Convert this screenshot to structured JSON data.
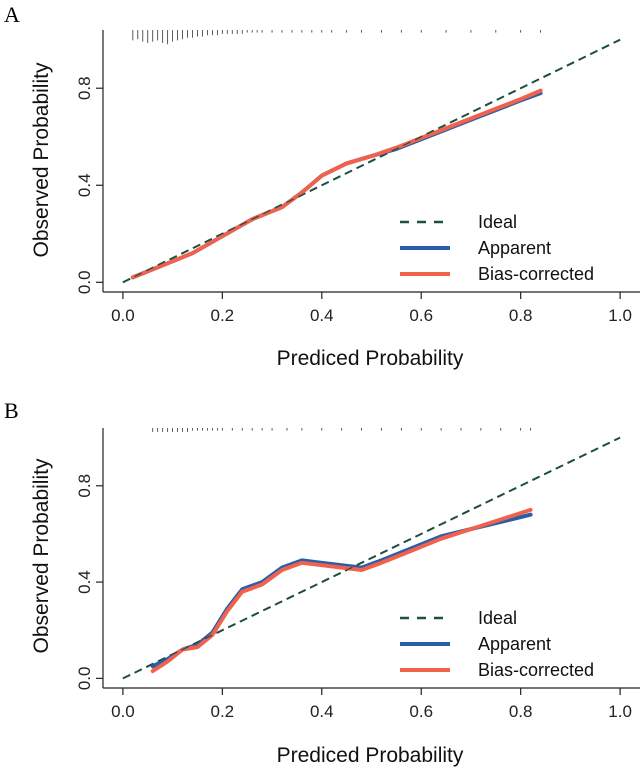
{
  "chart_data": [
    {
      "panel": "A",
      "type": "line",
      "xlabel": "Prediced Probability",
      "ylabel": "Observed Probability",
      "xlim": [
        0.0,
        1.0
      ],
      "ylim": [
        0.0,
        1.0
      ],
      "xticks": [
        "0.0",
        "0.2",
        "0.4",
        "0.6",
        "0.8",
        "1.0"
      ],
      "yticks": [
        "0.0",
        "0.4",
        "0.8"
      ],
      "legend_position": "bottom-right",
      "series": [
        {
          "name": "Ideal",
          "style": "dashed",
          "color": "#1f4f3f",
          "x": [
            0.0,
            1.0
          ],
          "y": [
            0.0,
            1.0
          ]
        },
        {
          "name": "Apparent",
          "style": "solid",
          "color": "#2a5fa8",
          "x": [
            0.02,
            0.08,
            0.14,
            0.2,
            0.26,
            0.32,
            0.36,
            0.4,
            0.45,
            0.5,
            0.55,
            0.6,
            0.65,
            0.7,
            0.75,
            0.8,
            0.84
          ],
          "y": [
            0.02,
            0.07,
            0.12,
            0.19,
            0.26,
            0.31,
            0.37,
            0.44,
            0.49,
            0.52,
            0.55,
            0.59,
            0.63,
            0.67,
            0.71,
            0.75,
            0.78
          ]
        },
        {
          "name": "Bias-corrected",
          "style": "solid",
          "color": "#f0624d",
          "x": [
            0.02,
            0.08,
            0.14,
            0.2,
            0.26,
            0.32,
            0.36,
            0.4,
            0.45,
            0.5,
            0.55,
            0.6,
            0.65,
            0.7,
            0.75,
            0.8,
            0.84
          ],
          "y": [
            0.02,
            0.07,
            0.12,
            0.19,
            0.26,
            0.31,
            0.37,
            0.44,
            0.49,
            0.52,
            0.555,
            0.595,
            0.635,
            0.675,
            0.715,
            0.755,
            0.79
          ]
        }
      ],
      "rug": [
        0.02,
        0.03,
        0.04,
        0.05,
        0.06,
        0.07,
        0.08,
        0.09,
        0.1,
        0.11,
        0.12,
        0.13,
        0.14,
        0.15,
        0.16,
        0.17,
        0.18,
        0.19,
        0.2,
        0.21,
        0.22,
        0.23,
        0.24,
        0.25,
        0.26,
        0.27,
        0.28,
        0.3,
        0.32,
        0.34,
        0.36,
        0.38,
        0.4,
        0.42,
        0.45,
        0.48,
        0.52,
        0.56,
        0.6,
        0.65,
        0.7,
        0.75,
        0.8,
        0.84
      ],
      "rug_counts": [
        8,
        7,
        9,
        10,
        9,
        8,
        10,
        11,
        9,
        8,
        7,
        6,
        6,
        5,
        5,
        4,
        4,
        4,
        3,
        3,
        3,
        3,
        3,
        2,
        2,
        2,
        2,
        2,
        2,
        2,
        2,
        2,
        2,
        2,
        2,
        2,
        2,
        2,
        2,
        2,
        2,
        2,
        2,
        2
      ]
    },
    {
      "panel": "B",
      "type": "line",
      "xlabel": "Prediced Probability",
      "ylabel": "Observed Probability",
      "xlim": [
        0.0,
        1.0
      ],
      "ylim": [
        0.0,
        1.0
      ],
      "xticks": [
        "0.0",
        "0.2",
        "0.4",
        "0.6",
        "0.8",
        "1.0"
      ],
      "yticks": [
        "0.0",
        "0.4",
        "0.8"
      ],
      "legend_position": "bottom-right",
      "series": [
        {
          "name": "Ideal",
          "style": "dashed",
          "color": "#1f4f3f",
          "x": [
            0.0,
            1.0
          ],
          "y": [
            0.0,
            1.0
          ]
        },
        {
          "name": "Apparent",
          "style": "solid",
          "color": "#2a5fa8",
          "x": [
            0.06,
            0.09,
            0.12,
            0.15,
            0.18,
            0.21,
            0.24,
            0.28,
            0.32,
            0.36,
            0.4,
            0.44,
            0.48,
            0.52,
            0.58,
            0.64,
            0.7,
            0.76,
            0.82
          ],
          "y": [
            0.05,
            0.08,
            0.12,
            0.14,
            0.19,
            0.29,
            0.37,
            0.4,
            0.46,
            0.49,
            0.48,
            0.47,
            0.46,
            0.49,
            0.54,
            0.59,
            0.62,
            0.65,
            0.68
          ]
        },
        {
          "name": "Bias-corrected",
          "style": "solid",
          "color": "#f0624d",
          "x": [
            0.06,
            0.09,
            0.12,
            0.15,
            0.18,
            0.21,
            0.24,
            0.28,
            0.32,
            0.36,
            0.4,
            0.44,
            0.48,
            0.52,
            0.58,
            0.64,
            0.7,
            0.76,
            0.82
          ],
          "y": [
            0.03,
            0.07,
            0.12,
            0.13,
            0.18,
            0.28,
            0.36,
            0.39,
            0.45,
            0.48,
            0.47,
            0.46,
            0.45,
            0.48,
            0.53,
            0.58,
            0.62,
            0.66,
            0.7
          ]
        }
      ],
      "rug": [
        0.06,
        0.07,
        0.08,
        0.09,
        0.1,
        0.11,
        0.12,
        0.13,
        0.14,
        0.15,
        0.16,
        0.17,
        0.18,
        0.19,
        0.2,
        0.22,
        0.24,
        0.26,
        0.28,
        0.3,
        0.33,
        0.36,
        0.4,
        0.44,
        0.48,
        0.52,
        0.56,
        0.6,
        0.64,
        0.68,
        0.72,
        0.76,
        0.8,
        0.82
      ],
      "rug_counts": [
        3,
        3,
        3,
        3,
        3,
        3,
        3,
        3,
        2,
        2,
        2,
        2,
        2,
        2,
        2,
        2,
        2,
        2,
        2,
        2,
        2,
        2,
        2,
        2,
        2,
        2,
        2,
        2,
        2,
        2,
        2,
        2,
        2,
        2
      ]
    }
  ]
}
